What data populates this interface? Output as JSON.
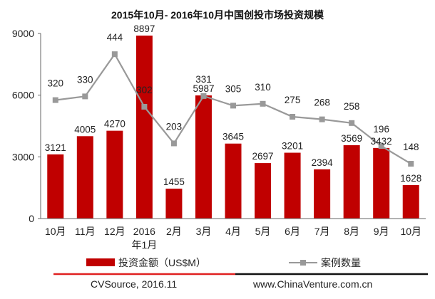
{
  "chart_data": {
    "type": "bar",
    "title": "2015年10月- 2016年10月中国创投市场投资规模",
    "categories": [
      "10月",
      "11月",
      "12月",
      "2016年1月",
      "2月",
      "3月",
      "4月",
      "5月",
      "6月",
      "7月",
      "8月",
      "9月",
      "10月"
    ],
    "category_lines": [
      [
        "10月"
      ],
      [
        "11月"
      ],
      [
        "12月"
      ],
      [
        "2016",
        "年1月"
      ],
      [
        "2月"
      ],
      [
        "3月"
      ],
      [
        "4月"
      ],
      [
        "5月"
      ],
      [
        "6月"
      ],
      [
        "7月"
      ],
      [
        "8月"
      ],
      [
        "9月"
      ],
      [
        "10月"
      ]
    ],
    "series": [
      {
        "name": "投资金额（US$M）",
        "type": "bar",
        "axis": "left",
        "color": "#c00000",
        "values": [
          3121,
          4005,
          4270,
          8897,
          1455,
          5987,
          3645,
          2697,
          3201,
          2394,
          3569,
          3432,
          1628
        ]
      },
      {
        "name": "案例数量",
        "type": "line",
        "axis": "right",
        "color": "#999999",
        "values": [
          320,
          330,
          444,
          302,
          203,
          331,
          305,
          310,
          275,
          268,
          258,
          196,
          148
        ]
      }
    ],
    "y_left": {
      "ticks": [
        "0",
        "3000",
        "6000",
        "9000"
      ],
      "ylim": [
        0,
        9000
      ]
    },
    "y_right": {
      "ylim": [
        0,
        500
      ],
      "tick_labels_shown": false
    },
    "xlabel": "",
    "ylabel": "",
    "legend_position": "bottom",
    "grid": false
  },
  "footer": {
    "source": "CVSource, 2016.11",
    "website": "www.ChinaVenture.com.cn"
  },
  "colors": {
    "bar": "#c00000",
    "line": "#999999",
    "footer_red": "#e02020",
    "footer_black": "#111111"
  }
}
